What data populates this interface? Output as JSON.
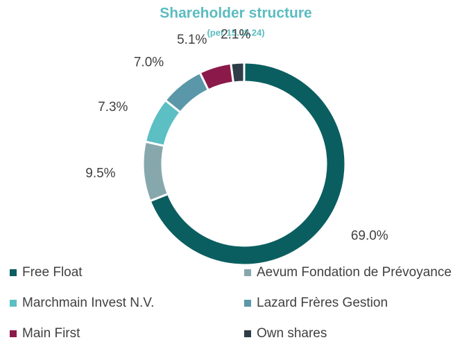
{
  "chart_data": {
    "type": "donut",
    "title": "Shareholder structure",
    "subtitle": "(per 15.08.24)",
    "categories": [
      "Free Float",
      "Aevum Fondation de Prévoyance",
      "Marchmain Invest N.V.",
      "Lazard Frères Gestion",
      "Main First",
      "Own shares"
    ],
    "values": [
      69.0,
      9.5,
      7.3,
      7.0,
      5.1,
      2.1
    ],
    "value_labels": [
      "69.0%",
      "9.5%",
      "7.3%",
      "7.0%",
      "5.1%",
      "2.1%"
    ],
    "colors": [
      "#0b5e60",
      "#86a8ac",
      "#5bbfc4",
      "#5a97a8",
      "#8b1a4a",
      "#2e3d48"
    ],
    "legend": "bottom"
  }
}
